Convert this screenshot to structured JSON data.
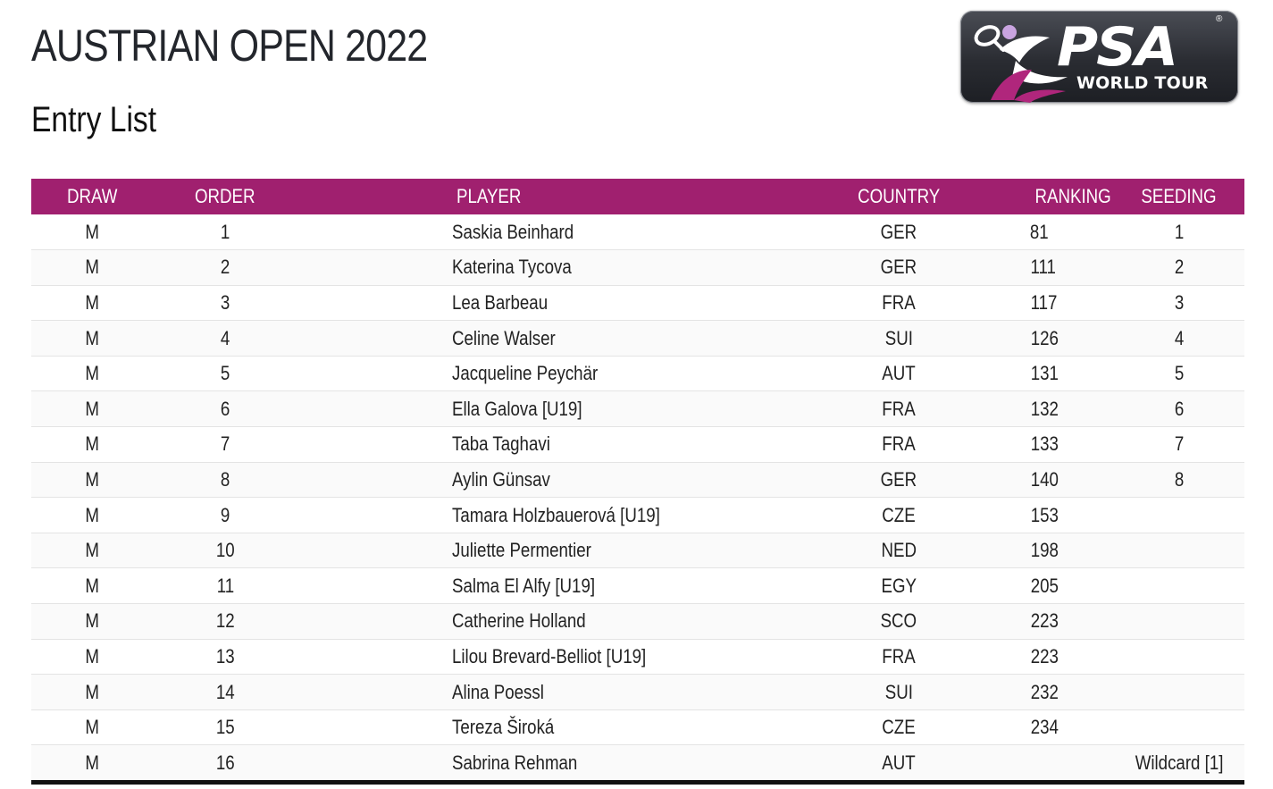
{
  "header": {
    "title": "AUSTRIAN OPEN 2022",
    "subtitle": "Entry List"
  },
  "logo": {
    "main_text": "PSA",
    "sub_text": "WORLD TOUR",
    "registered_mark": "®",
    "colors": {
      "background": "#2a2c32",
      "accent": "#b0267c",
      "light_accent": "#c9a4e0"
    }
  },
  "table": {
    "header_color": "#a0206f",
    "columns": [
      "DRAW",
      "ORDER",
      "PLAYER",
      "COUNTRY",
      "RANKING",
      "SEEDING"
    ],
    "rows": [
      {
        "draw": "M",
        "order": "1",
        "player": "Saskia Beinhard",
        "country": "GER",
        "ranking": "81",
        "seeding": "1"
      },
      {
        "draw": "M",
        "order": "2",
        "player": "Katerina Tycova",
        "country": "GER",
        "ranking": "111",
        "seeding": "2"
      },
      {
        "draw": "M",
        "order": "3",
        "player": "Lea Barbeau",
        "country": "FRA",
        "ranking": "117",
        "seeding": "3"
      },
      {
        "draw": "M",
        "order": "4",
        "player": "Celine Walser",
        "country": "SUI",
        "ranking": "126",
        "seeding": "4"
      },
      {
        "draw": "M",
        "order": "5",
        "player": "Jacqueline Peychär",
        "country": "AUT",
        "ranking": "131",
        "seeding": "5"
      },
      {
        "draw": "M",
        "order": "6",
        "player": "Ella Galova [U19]",
        "country": "FRA",
        "ranking": "132",
        "seeding": "6"
      },
      {
        "draw": "M",
        "order": "7",
        "player": "Taba Taghavi",
        "country": "FRA",
        "ranking": "133",
        "seeding": "7"
      },
      {
        "draw": "M",
        "order": "8",
        "player": "Aylin Günsav",
        "country": "GER",
        "ranking": "140",
        "seeding": "8"
      },
      {
        "draw": "M",
        "order": "9",
        "player": "Tamara Holzbauerová [U19]",
        "country": "CZE",
        "ranking": "153",
        "seeding": ""
      },
      {
        "draw": "M",
        "order": "10",
        "player": "Juliette Permentier",
        "country": "NED",
        "ranking": "198",
        "seeding": ""
      },
      {
        "draw": "M",
        "order": "11",
        "player": "Salma El Alfy [U19]",
        "country": "EGY",
        "ranking": "205",
        "seeding": ""
      },
      {
        "draw": "M",
        "order": "12",
        "player": "Catherine Holland",
        "country": "SCO",
        "ranking": "223",
        "seeding": ""
      },
      {
        "draw": "M",
        "order": "13",
        "player": "Lilou Brevard-Belliot [U19]",
        "country": "FRA",
        "ranking": "223",
        "seeding": ""
      },
      {
        "draw": "M",
        "order": "14",
        "player": "Alina Poessl",
        "country": "SUI",
        "ranking": "232",
        "seeding": ""
      },
      {
        "draw": "M",
        "order": "15",
        "player": "Tereza Široká",
        "country": "CZE",
        "ranking": "234",
        "seeding": ""
      },
      {
        "draw": "M",
        "order": "16",
        "player": "Sabrina Rehman",
        "country": "AUT",
        "ranking": "",
        "seeding": "Wildcard [1]"
      }
    ]
  }
}
